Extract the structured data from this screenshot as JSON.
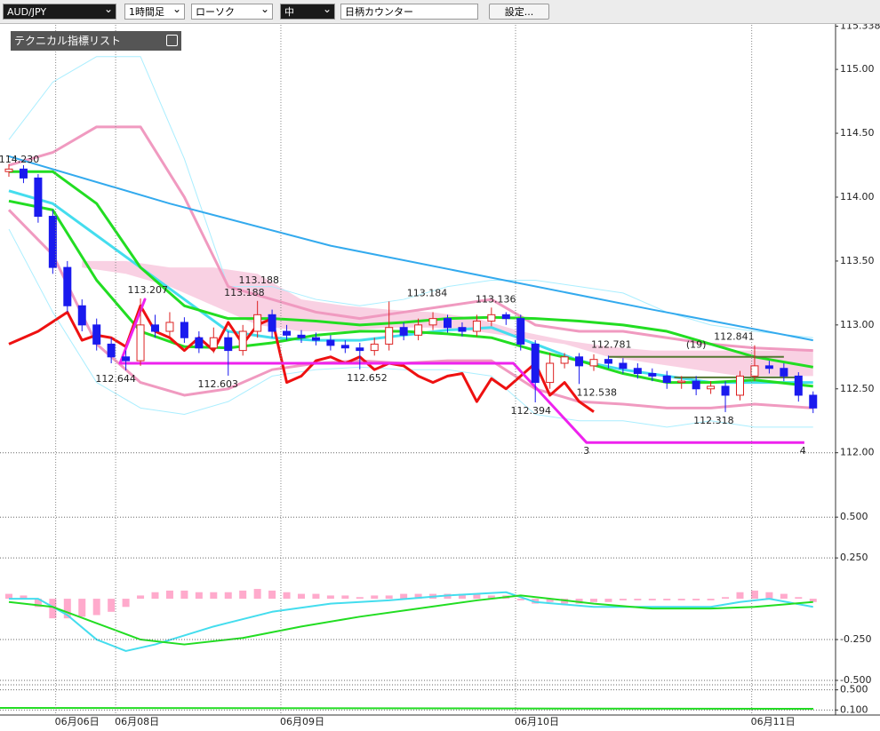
{
  "toolbar": {
    "symbol": "AUD/JPY",
    "timeframe": "1時間足",
    "chart_type": "ローソク",
    "size": "中",
    "counter": "日柄カウンター",
    "settings": "設定..."
  },
  "indicator_list": "テクニカル指標リスト",
  "chart_data": [
    {
      "type": "candlestick",
      "open": [
        114.2,
        114.22,
        114.15,
        113.85,
        113.45,
        113.15,
        113.0,
        112.85,
        112.75,
        112.72,
        113.0,
        112.95,
        113.02,
        112.9,
        112.82,
        112.9,
        112.8,
        112.95,
        113.08,
        112.95,
        112.92,
        112.9,
        112.88,
        112.84,
        112.82,
        112.8,
        112.85,
        112.98,
        112.92,
        113.0,
        113.05,
        112.98,
        112.95,
        113.03,
        113.08,
        113.05,
        112.85,
        112.55,
        112.7,
        112.75,
        112.68,
        112.73,
        112.7,
        112.66,
        112.62,
        112.6,
        112.55,
        112.56,
        112.5,
        112.52,
        112.45,
        112.6,
        112.68,
        112.66,
        112.6,
        112.45
      ],
      "high": [
        114.26,
        114.25,
        114.18,
        113.9,
        113.5,
        113.2,
        113.05,
        112.9,
        112.8,
        113.207,
        113.08,
        113.1,
        113.06,
        112.95,
        112.98,
        112.95,
        113.0,
        113.188,
        113.12,
        113.0,
        112.96,
        112.94,
        112.92,
        112.88,
        112.86,
        112.9,
        113.184,
        113.02,
        113.05,
        113.1,
        113.08,
        113.02,
        113.08,
        113.136,
        113.1,
        113.08,
        112.88,
        112.781,
        112.78,
        112.78,
        112.77,
        112.76,
        112.74,
        112.7,
        112.66,
        112.64,
        112.6,
        112.6,
        112.56,
        112.56,
        112.64,
        112.841,
        112.72,
        112.7,
        112.63,
        112.48
      ],
      "low": [
        114.16,
        114.11,
        113.8,
        113.4,
        113.1,
        112.95,
        112.8,
        112.7,
        112.644,
        112.68,
        112.9,
        112.9,
        112.86,
        112.78,
        112.78,
        112.603,
        112.76,
        112.9,
        112.9,
        112.88,
        112.86,
        112.84,
        112.8,
        112.78,
        112.652,
        112.76,
        112.8,
        112.88,
        112.88,
        112.96,
        112.94,
        112.91,
        112.91,
        112.99,
        113.0,
        112.8,
        112.394,
        112.5,
        112.66,
        112.538,
        112.64,
        112.66,
        112.62,
        112.58,
        112.56,
        112.5,
        112.5,
        112.45,
        112.46,
        112.318,
        112.41,
        112.56,
        112.62,
        112.56,
        112.4,
        112.31
      ],
      "close": [
        114.22,
        114.15,
        113.85,
        113.45,
        113.15,
        113.0,
        112.85,
        112.75,
        112.72,
        113.0,
        112.95,
        113.02,
        112.9,
        112.82,
        112.9,
        112.8,
        112.95,
        113.08,
        112.95,
        112.92,
        112.9,
        112.88,
        112.84,
        112.82,
        112.8,
        112.85,
        112.98,
        112.92,
        113.0,
        113.05,
        112.98,
        112.95,
        113.03,
        113.08,
        113.05,
        112.85,
        112.55,
        112.7,
        112.75,
        112.68,
        112.73,
        112.7,
        112.66,
        112.62,
        112.6,
        112.55,
        112.56,
        112.5,
        112.52,
        112.45,
        112.6,
        112.68,
        112.66,
        112.6,
        112.45,
        112.35
      ],
      "up_color": "#dd2222",
      "down_color": "#1a1aee",
      "ylim": [
        111.56,
        115.39
      ],
      "yticks": [
        {
          "value": 115.338,
          "label": "115.338"
        },
        {
          "value": 115,
          "label": "115.00"
        },
        {
          "value": 114.5,
          "label": "114.50"
        },
        {
          "value": 114,
          "label": "114.00"
        },
        {
          "value": 113.5,
          "label": "113.50"
        },
        {
          "value": 113,
          "label": "113.00"
        },
        {
          "value": 112.5,
          "label": "112.50"
        },
        {
          "value": 112,
          "label": "112.00"
        }
      ],
      "xticks": [
        {
          "value": 3.2,
          "label": "06月06日"
        },
        {
          "value": 7.3,
          "label": "06月08日"
        },
        {
          "value": 18.6,
          "label": "06月09日"
        },
        {
          "value": 34.65,
          "label": "06月10日"
        },
        {
          "value": 50.8,
          "label": "06月11日"
        }
      ],
      "cloud": {
        "color": "#f7c6dc",
        "x": [
          5,
          8,
          11,
          14,
          17,
          20,
          23,
          26,
          29,
          32,
          35,
          38,
          41,
          44,
          47,
          50,
          53,
          55
        ],
        "upper": [
          113.5,
          113.5,
          113.45,
          113.45,
          113.4,
          113.2,
          113.15,
          113.12,
          113.1,
          113.05,
          112.95,
          112.88,
          112.83,
          112.8,
          112.8,
          112.8,
          112.8,
          112.8
        ],
        "lower": [
          113.45,
          113.4,
          113.3,
          113.15,
          113.0,
          112.95,
          112.95,
          112.98,
          112.98,
          112.95,
          112.9,
          112.85,
          112.75,
          112.7,
          112.65,
          112.6,
          112.6,
          112.6
        ]
      },
      "lines": [
        {
          "color": "#aaeeff",
          "width": 1,
          "x": [
            0,
            3,
            6,
            9,
            12,
            15,
            18,
            21,
            24,
            27,
            30,
            33,
            36,
            39,
            42,
            45,
            48,
            51,
            55
          ],
          "values": [
            114.45,
            114.9,
            115.1,
            115.1,
            114.3,
            113.3,
            113.3,
            113.2,
            113.15,
            113.2,
            113.3,
            113.35,
            113.35,
            113.3,
            113.25,
            113.1,
            113.0,
            112.95,
            112.9
          ]
        },
        {
          "color": "#aaeeff",
          "width": 1,
          "x": [
            0,
            3,
            6,
            9,
            12,
            15,
            18,
            21,
            24,
            27,
            30,
            33,
            36,
            39,
            42,
            45,
            48,
            51,
            55
          ],
          "values": [
            113.75,
            113.1,
            112.55,
            112.35,
            112.3,
            112.4,
            112.6,
            112.65,
            112.67,
            112.65,
            112.65,
            112.6,
            112.3,
            112.25,
            112.25,
            112.2,
            112.25,
            112.2,
            112.2
          ]
        },
        {
          "color": "#f09ac0",
          "width": 3,
          "x": [
            0,
            3,
            6,
            9,
            12,
            15,
            18,
            21,
            24,
            27,
            30,
            33,
            36,
            39,
            42,
            45,
            48,
            51,
            55
          ],
          "values": [
            114.25,
            114.35,
            114.55,
            114.55,
            114.0,
            113.3,
            113.2,
            113.1,
            113.05,
            113.1,
            113.15,
            113.2,
            113.0,
            112.95,
            112.95,
            112.9,
            112.85,
            112.82,
            112.8
          ]
        },
        {
          "color": "#f09ac0",
          "width": 3,
          "x": [
            0,
            3,
            6,
            9,
            12,
            15,
            18,
            21,
            24,
            27,
            30,
            33,
            36,
            39,
            42,
            45,
            48,
            51,
            55
          ],
          "values": [
            113.9,
            113.55,
            112.85,
            112.55,
            112.45,
            112.5,
            112.65,
            112.7,
            112.72,
            112.7,
            112.72,
            112.72,
            112.5,
            112.4,
            112.38,
            112.35,
            112.35,
            112.38,
            112.35
          ]
        },
        {
          "color": "#33aaee",
          "width": 2,
          "x": [
            0,
            11,
            22,
            33,
            44,
            55
          ],
          "values": [
            114.32,
            113.95,
            113.62,
            113.37,
            113.12,
            112.88
          ]
        },
        {
          "color": "#44ddee",
          "width": 3,
          "x": [
            0,
            3,
            6,
            9,
            12,
            15,
            18,
            21,
            24,
            27,
            30,
            33,
            36,
            39,
            42,
            45,
            48,
            51,
            55
          ],
          "values": [
            114.05,
            113.95,
            113.7,
            113.45,
            113.2,
            112.95,
            112.9,
            112.88,
            112.88,
            112.92,
            112.96,
            112.98,
            112.85,
            112.72,
            112.65,
            112.6,
            112.55,
            112.55,
            112.55
          ]
        },
        {
          "color": "#22dd22",
          "width": 3,
          "x": [
            0,
            3,
            6,
            9,
            12,
            15,
            18,
            21,
            24,
            27,
            30,
            33,
            36,
            39,
            42,
            45,
            48,
            51,
            55
          ],
          "values": [
            114.2,
            114.2,
            113.95,
            113.45,
            113.15,
            113.05,
            113.05,
            113.03,
            113.0,
            113.02,
            113.05,
            113.06,
            113.05,
            113.03,
            113.0,
            112.95,
            112.85,
            112.75,
            112.67
          ]
        },
        {
          "color": "#22dd22",
          "width": 3,
          "x": [
            0,
            3,
            6,
            9,
            12,
            15,
            18,
            21,
            24,
            27,
            30,
            33,
            36,
            39,
            42,
            45,
            48,
            51,
            55
          ],
          "values": [
            113.97,
            113.9,
            113.35,
            112.95,
            112.83,
            112.82,
            112.86,
            112.92,
            112.95,
            112.95,
            112.93,
            112.9,
            112.8,
            112.72,
            112.62,
            112.55,
            112.55,
            112.57,
            112.52
          ]
        },
        {
          "color": "#ee1111",
          "width": 3,
          "x": [
            0,
            2,
            4,
            5,
            6,
            7,
            8,
            9,
            10,
            11,
            12,
            13,
            14,
            15,
            16,
            17,
            18,
            19,
            20,
            21,
            22,
            23,
            24,
            25,
            26,
            27,
            28,
            29,
            30,
            31,
            32,
            33,
            34,
            35,
            36,
            37,
            38,
            39,
            40
          ],
          "values": [
            112.85,
            112.95,
            113.1,
            112.88,
            112.92,
            112.9,
            112.83,
            113.15,
            112.95,
            112.9,
            112.8,
            112.9,
            112.8,
            113.02,
            112.85,
            113.0,
            113.05,
            112.55,
            112.6,
            112.72,
            112.75,
            112.7,
            112.75,
            112.65,
            112.7,
            112.68,
            112.6,
            112.55,
            112.6,
            112.62,
            112.4,
            112.58,
            112.5,
            112.6,
            112.7,
            112.45,
            112.55,
            112.4,
            112.32
          ]
        },
        {
          "color": "#ee22ee",
          "width": 3,
          "x": [
            7.6,
            9.3,
            7.6,
            34.5,
            39.5,
            54.4
          ],
          "values": [
            112.7,
            113.2,
            112.7,
            112.7,
            112.08,
            112.08
          ]
        },
        {
          "color": "#557733",
          "width": 2,
          "x": [
            41,
            53
          ],
          "values": [
            112.75,
            112.75
          ]
        },
        {
          "color": "#557733",
          "width": 2,
          "x": [
            45.5,
            53.8
          ],
          "values": [
            112.59,
            112.59
          ]
        }
      ],
      "annotations": [
        {
          "text": "114.230",
          "x": 0.7,
          "y": 114.23,
          "anchor": "above"
        },
        {
          "text": "113.207",
          "x": 9.5,
          "y": 113.207,
          "anchor": "above"
        },
        {
          "text": "112.644",
          "x": 7.3,
          "y": 112.644,
          "anchor": "below"
        },
        {
          "text": "113.188",
          "x": 17.1,
          "y": 113.188,
          "anchor": "top"
        },
        {
          "text": "113.188",
          "x": 16.1,
          "y": 113.188,
          "anchor": "above"
        },
        {
          "text": "112.603",
          "x": 14.3,
          "y": 112.603,
          "anchor": "below"
        },
        {
          "text": "112.652",
          "x": 24.5,
          "y": 112.652,
          "anchor": "below"
        },
        {
          "text": "113.184",
          "x": 28.6,
          "y": 113.184,
          "anchor": "above"
        },
        {
          "text": "113.136",
          "x": 33.3,
          "y": 113.136,
          "anchor": "above"
        },
        {
          "text": "112.394",
          "x": 35.7,
          "y": 112.394,
          "anchor": "below"
        },
        {
          "text": "112.781",
          "x": 41.2,
          "y": 112.781,
          "anchor": "above"
        },
        {
          "text": "112.538",
          "x": 40.2,
          "y": 112.538,
          "anchor": "below"
        },
        {
          "text": "(19)",
          "x": 47,
          "y": 112.78,
          "anchor": "above"
        },
        {
          "text": "112.841",
          "x": 49.6,
          "y": 112.841,
          "anchor": "above"
        },
        {
          "text": "112.318",
          "x": 48.2,
          "y": 112.318,
          "anchor": "below"
        },
        {
          "text": "3",
          "x": 39.5,
          "y": 112.08,
          "anchor": "below",
          "color": "#ee22ee"
        },
        {
          "text": "4",
          "x": 54.3,
          "y": 112.08,
          "anchor": "below",
          "color": "#ee22ee"
        }
      ],
      "grid": false
    },
    {
      "type": "macd",
      "histogram": [
        0.03,
        0.02,
        -0.05,
        -0.12,
        -0.12,
        -0.11,
        -0.1,
        -0.08,
        -0.05,
        0.02,
        0.04,
        0.05,
        0.05,
        0.04,
        0.04,
        0.04,
        0.05,
        0.06,
        0.05,
        0.04,
        0.03,
        0.03,
        0.02,
        0.02,
        0.01,
        0.02,
        0.02,
        0.03,
        0.03,
        0.03,
        0.03,
        0.03,
        0.03,
        0.02,
        0.02,
        -0.01,
        -0.03,
        -0.02,
        -0.03,
        -0.03,
        -0.02,
        -0.02,
        -0.01,
        -0.01,
        -0.01,
        -0.01,
        -0.01,
        -0.01,
        -0.01,
        0.01,
        0.04,
        0.05,
        0.04,
        0.03,
        0.01,
        -0.02
      ],
      "histogram_color": "#ffaacc",
      "lines": [
        {
          "color": "#44ddee",
          "width": 2,
          "x": [
            0,
            2,
            4,
            6,
            8,
            10,
            14,
            18,
            22,
            26,
            30,
            34,
            36,
            40,
            44,
            48,
            50,
            52,
            55
          ],
          "values": [
            0.0,
            0.0,
            -0.1,
            -0.25,
            -0.32,
            -0.28,
            -0.17,
            -0.08,
            -0.03,
            -0.01,
            0.02,
            0.04,
            -0.02,
            -0.05,
            -0.05,
            -0.05,
            -0.02,
            0.0,
            -0.05
          ]
        },
        {
          "color": "#22dd22",
          "width": 2,
          "x": [
            0,
            3,
            6,
            9,
            12,
            16,
            20,
            24,
            28,
            32,
            35,
            40,
            44,
            48,
            51,
            55
          ],
          "values": [
            -0.02,
            -0.05,
            -0.15,
            -0.25,
            -0.28,
            -0.24,
            -0.17,
            -0.11,
            -0.06,
            -0.01,
            0.02,
            -0.03,
            -0.06,
            -0.06,
            -0.05,
            -0.02
          ]
        }
      ],
      "ylim": [
        -0.5,
        0.55
      ],
      "yticks": [
        {
          "value": 0.5,
          "label": "0.500"
        },
        {
          "value": 0.25,
          "label": "0.250"
        },
        {
          "value": -0.25,
          "label": "-0.250"
        },
        {
          "value": -0.5,
          "label": "-0.500"
        }
      ],
      "grid": true
    },
    {
      "type": "oscillator",
      "ylim": [
        0.0,
        0.6
      ],
      "yticks": [
        {
          "value": 0.5,
          "label": "0.500"
        },
        {
          "value": 0.1,
          "label": "0.100"
        }
      ],
      "grid": true
    }
  ]
}
